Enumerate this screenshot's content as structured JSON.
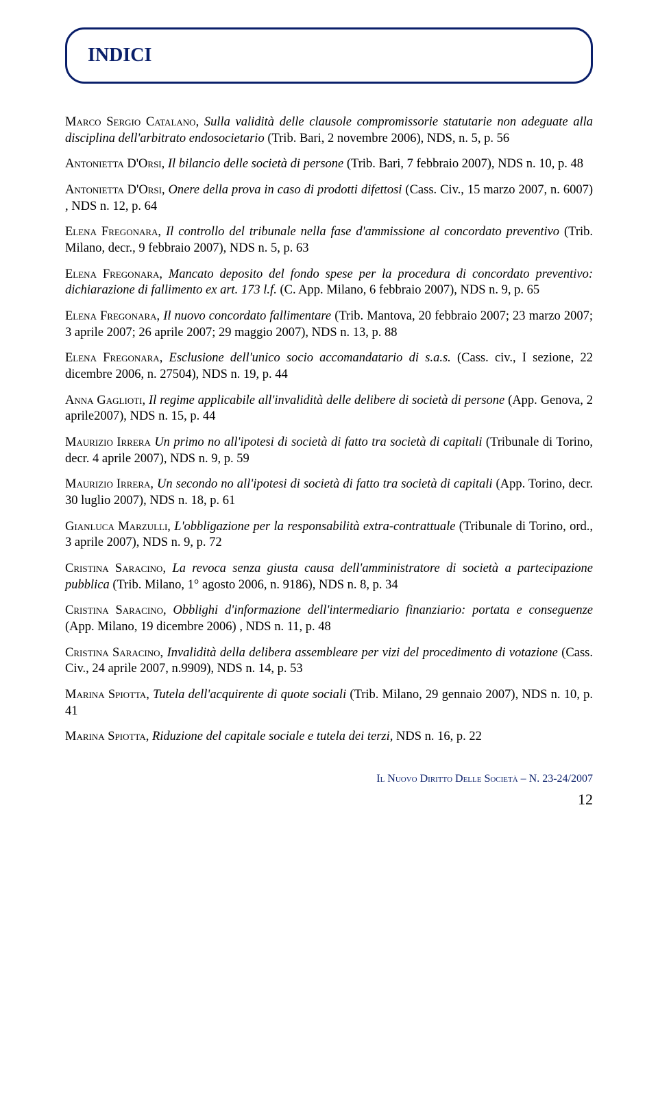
{
  "header": {
    "title": "INDICI"
  },
  "entries": [
    {
      "author": "Marco Sergio Catalano",
      "title_italic": "Sulla validità delle clausole compromissorie statutarie non adeguate alla disciplina dell'arbitrato endosocietario",
      "tail": " (Trib. Bari, 2 novembre 2006), NDS, n. 5, p. 56"
    },
    {
      "author": "Antonietta D'Orsi",
      "title_italic": "Il bilancio delle società di persone",
      "tail": " (Trib. Bari, 7 febbraio 2007), NDS n. 10, p. 48"
    },
    {
      "author": "Antonietta D'Orsi",
      "title_italic": "Onere della prova in caso di prodotti difettosi",
      "tail": " (Cass. Civ., 15 marzo 2007, n. 6007) , NDS n. 12, p. 64"
    },
    {
      "author": "Elena Fregonara",
      "title_italic": "Il controllo del tribunale nella fase d'ammissione al concordato preventivo",
      "tail": " (Trib. Milano, decr., 9 febbraio 2007), NDS n. 5, p. 63"
    },
    {
      "author": "Elena Fregonara",
      "title_italic": "Mancato deposito del fondo spese per la procedura di concordato preventivo: dichiarazione di fallimento ex art. 173 l.f.",
      "tail": " (C. App. Milano, 6 febbraio 2007), NDS n. 9, p. 65"
    },
    {
      "author": "Elena Fregonara",
      "title_italic": "Il nuovo concordato fallimentare",
      "tail": " (Trib. Mantova, 20 febbraio 2007; 23 marzo 2007; 3 aprile 2007; 26 aprile 2007; 29 maggio 2007), NDS n. 13, p. 88"
    },
    {
      "author": "Elena Fregonara",
      "title_italic": "Esclusione dell'unico socio accomandatario di s.a.s.",
      "tail": " (Cass. civ., I sezione, 22 dicembre 2006, n. 27504), NDS n. 19, p. 44"
    },
    {
      "author": "Anna Gaglioti",
      "title_italic": "Il regime applicabile all'invalidità delle delibere di società di persone",
      "tail": " (App. Genova, 2 aprile2007), NDS n. 15, p. 44"
    },
    {
      "author": "Maurizio Irrera",
      "title_italic": "Un primo no all'ipotesi di società di fatto tra società di capitali",
      "tail": " (Tribunale di Torino, decr. 4 aprile 2007), NDS n. 9, p. 59",
      "no_comma": true
    },
    {
      "author": "Maurizio Irrera",
      "title_italic": "Un secondo no all'ipotesi di società di fatto tra società di capitali",
      "tail": " (App. Torino, decr. 30 luglio 2007), NDS n. 18, p. 61"
    },
    {
      "author": "Gianluca Marzulli",
      "title_italic": "L'obbligazione per la responsabilità extra-contrattuale",
      "tail": " (Tribunale di Torino, ord., 3 aprile 2007), NDS n. 9, p. 72"
    },
    {
      "author": "Cristina Saracino",
      "title_italic": "La revoca senza giusta causa dell'amministratore di società a partecipazione pubblica",
      "tail": " (Trib. Milano, 1° agosto 2006, n. 9186), NDS n. 8, p. 34"
    },
    {
      "author": "Cristina Saracino",
      "title_italic": "Obblighi d'informazione dell'intermediario finanziario: portata e conseguenze",
      "tail": " (App. Milano, 19 dicembre 2006) , NDS n. 11, p. 48"
    },
    {
      "author": "Cristina Saracino",
      "title_italic": "Invalidità della delibera assembleare per vizi del procedimento di votazione",
      "tail": " (Cass. Civ., 24 aprile 2007, n.9909), NDS n. 14, p. 53"
    },
    {
      "author": "Marina Spiotta",
      "title_italic": "Tutela dell'acquirente di quote sociali",
      "tail": " (Trib. Milano, 29 gennaio 2007), NDS n. 10, p. 41"
    },
    {
      "author": "Marina Spiotta",
      "title_italic": "Riduzione del capitale sociale e tutela dei terzi,",
      "tail": " NDS n. 16, p. 22"
    }
  ],
  "footer": {
    "text_sc": "Il Nuovo Diritto Delle Società",
    "text_tail": " – N. 23-24/2007",
    "page": "12"
  },
  "colors": {
    "brand": "#0a1f6a",
    "text": "#000000",
    "bg": "#ffffff"
  }
}
